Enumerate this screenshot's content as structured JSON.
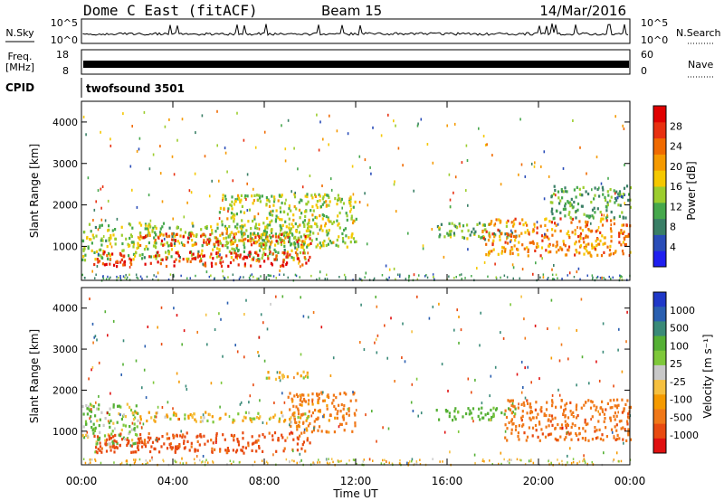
{
  "header": {
    "radar": "Dome C East (fitACF)",
    "beam": "Beam 15",
    "date": "14/Mar/2016"
  },
  "top_panels": {
    "nsky_label": "N.Sky",
    "nsky_ticks": [
      "10^5",
      "10^0"
    ],
    "nsearch_label": "N.Search",
    "nsearch_ticks": [
      "10^5",
      "10^0"
    ],
    "freq_label": "Freq.",
    "freq_unit": "[MHz]",
    "freq_ticks": [
      "18",
      "8"
    ],
    "nave_label": "Nave",
    "nave_ticks": [
      "60",
      "0"
    ],
    "cpid_label": "CPID",
    "cpid_value": "twofsound 3501"
  },
  "chart_data": [
    {
      "type": "heatmap",
      "name": "power",
      "xlabel": "Time UT",
      "ylabel": "Slant Range [km]",
      "xlim": [
        0,
        24
      ],
      "ylim": [
        180,
        4500
      ],
      "xticks": [
        "00:00",
        "04:00",
        "08:00",
        "12:00",
        "16:00",
        "20:00",
        "00:00"
      ],
      "yticks": [
        "1000",
        "2000",
        "3000",
        "4000"
      ],
      "colorbar": {
        "label": "Power [dB]",
        "ticks": [
          "4",
          "8",
          "12",
          "16",
          "20",
          "24",
          "28"
        ],
        "range": [
          0,
          32
        ],
        "colors": [
          "#1f1ff0",
          "#2a4db8",
          "#3a7f66",
          "#46a84c",
          "#9ccd2e",
          "#f5c800",
          "#f59a00",
          "#f06a00",
          "#e83010",
          "#e00000"
        ]
      },
      "bands": [
        {
          "t0": 0.0,
          "t1": 10.0,
          "r0": 700,
          "r1": 1600,
          "level": 14
        },
        {
          "t0": 2.5,
          "t1": 10.0,
          "r0": 1050,
          "r1": 1350,
          "level": 26
        },
        {
          "t0": 0.5,
          "t1": 10.0,
          "r0": 550,
          "r1": 900,
          "level": 28
        },
        {
          "t0": 6.0,
          "t1": 12.0,
          "r0": 1000,
          "r1": 2300,
          "level": 15
        },
        {
          "t0": 15.5,
          "t1": 19.0,
          "r0": 1200,
          "r1": 1600,
          "level": 12
        },
        {
          "t0": 17.5,
          "t1": 24.0,
          "r0": 800,
          "r1": 1700,
          "level": 22
        },
        {
          "t0": 20.5,
          "t1": 24.0,
          "r0": 1700,
          "r1": 2500,
          "level": 11
        }
      ]
    },
    {
      "type": "heatmap",
      "name": "velocity",
      "xlabel": "Time UT",
      "ylabel": "Slant Range [km]",
      "xlim": [
        0,
        24
      ],
      "ylim": [
        180,
        4500
      ],
      "xticks": [
        "00:00",
        "04:00",
        "08:00",
        "12:00",
        "16:00",
        "20:00",
        "00:00"
      ],
      "yticks": [
        "1000",
        "2000",
        "3000",
        "4000"
      ],
      "colorbar": {
        "label": "Velocity [m s⁻¹]",
        "ticks": [
          "1000",
          "500",
          "100",
          "25",
          "-25",
          "-100",
          "-500",
          "-1000"
        ],
        "colors": [
          "#1f38c8",
          "#2a5fb0",
          "#3a8a78",
          "#55b035",
          "#7ec83a",
          "#c8c8c8",
          "#f5c040",
          "#f59a00",
          "#f07818",
          "#e84a10",
          "#e01010"
        ]
      },
      "bands": [
        {
          "t0": 0.0,
          "t1": 2.5,
          "r0": 700,
          "r1": 1700,
          "velocity": 80
        },
        {
          "t0": 2.0,
          "t1": 10.0,
          "r0": 1250,
          "r1": 1500,
          "velocity": 0
        },
        {
          "t0": 0.5,
          "t1": 10.0,
          "r0": 500,
          "r1": 1000,
          "velocity": -300
        },
        {
          "t0": 9.0,
          "t1": 12.0,
          "r0": 1000,
          "r1": 2000,
          "velocity": -150
        },
        {
          "t0": 15.5,
          "t1": 19.0,
          "r0": 1300,
          "r1": 1600,
          "velocity": 150
        },
        {
          "t0": 18.5,
          "t1": 24.0,
          "r0": 800,
          "r1": 1800,
          "velocity": -200
        },
        {
          "t0": 8.0,
          "t1": 10.0,
          "r0": 2300,
          "r1": 2500,
          "velocity": 0
        }
      ]
    }
  ]
}
